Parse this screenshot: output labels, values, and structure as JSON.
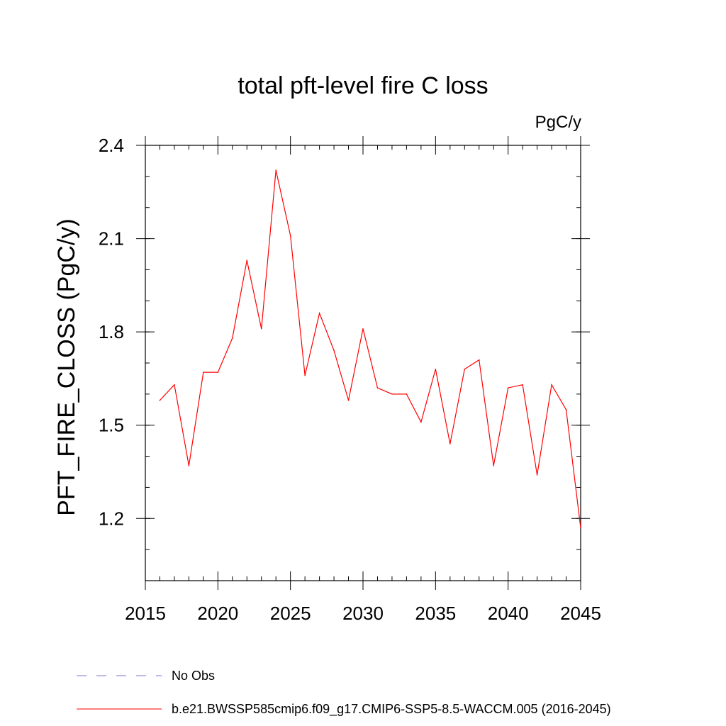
{
  "chart_data": {
    "type": "line",
    "title": "total pft-level fire C loss",
    "units_label": "PgC/y",
    "ylabel": "PFT_FIRE_CLOSS  (PgC/y)",
    "xlabel": "",
    "xlim": [
      2015,
      2045
    ],
    "ylim": [
      1.0,
      2.4
    ],
    "x_major_ticks": [
      2015,
      2020,
      2025,
      2030,
      2035,
      2040,
      2045
    ],
    "x_tick_labels": [
      "2015",
      "2020",
      "2025",
      "2030",
      "2035",
      "2040",
      "2045"
    ],
    "y_major_ticks": [
      1.2,
      1.5,
      1.8,
      2.1,
      2.4
    ],
    "y_tick_labels": [
      "1.2",
      "1.5",
      "1.8",
      "2.1",
      "2.4"
    ],
    "y_minor_step": 0.1,
    "x_minor_step": 1,
    "grid": false,
    "legend_position": "bottom",
    "series": [
      {
        "name": "b.e21.BWSSP585cmip6.f09_g17.CMIP6-SSP5-8.5-WACCM.005 (2016-2045)",
        "color": "#ff0000",
        "dash": "solid",
        "x": [
          2016,
          2017,
          2018,
          2019,
          2020,
          2021,
          2022,
          2023,
          2024,
          2025,
          2026,
          2027,
          2028,
          2029,
          2030,
          2031,
          2032,
          2033,
          2034,
          2035,
          2036,
          2037,
          2038,
          2039,
          2040,
          2041,
          2042,
          2043,
          2044,
          2045
        ],
        "values": [
          1.58,
          1.63,
          1.37,
          1.67,
          1.67,
          1.78,
          2.03,
          1.81,
          2.32,
          2.11,
          1.66,
          1.86,
          1.74,
          1.58,
          1.81,
          1.62,
          1.6,
          1.6,
          1.51,
          1.68,
          1.44,
          1.68,
          1.71,
          1.37,
          1.62,
          1.63,
          1.34,
          1.63,
          1.55,
          1.17
        ]
      }
    ],
    "legend": [
      {
        "label": "No Obs",
        "color": "#7777cc",
        "dash": "dashed"
      },
      {
        "label": "b.e21.BWSSP585cmip6.f09_g17.CMIP6-SSP5-8.5-WACCM.005 (2016-2045)",
        "color": "#ff0000",
        "dash": "solid"
      }
    ]
  }
}
